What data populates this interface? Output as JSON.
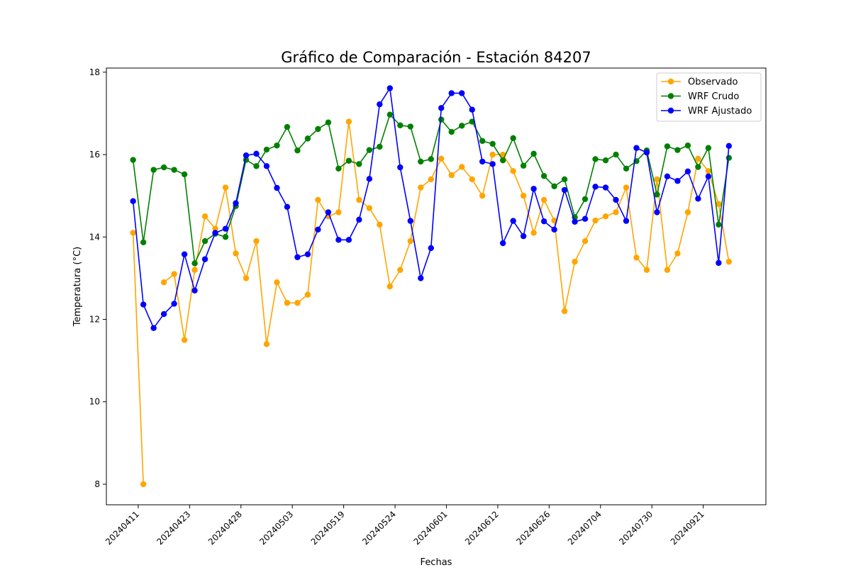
{
  "chart_data": {
    "type": "line",
    "title": "Gráfico de Comparación - Estación 84207",
    "xlabel": "Fechas",
    "ylabel": "Temperatura (°C)",
    "x_tick_labels": [
      "20240411",
      "20240423",
      "20240428",
      "20240503",
      "20240519",
      "20240524",
      "20240601",
      "20240612",
      "20240626",
      "20240704",
      "20240730",
      "20240921"
    ],
    "x_tick_positions": [
      0.5,
      5.5,
      10.5,
      15.5,
      20.5,
      25.5,
      30.5,
      35.5,
      40.5,
      45.5,
      50.5,
      55.5
    ],
    "y_ticks": [
      8,
      10,
      12,
      14,
      16,
      18
    ],
    "ylim": [
      7.5,
      18.1
    ],
    "xlim": [
      -2.6,
      61.6
    ],
    "legend_position": "upper right",
    "grid": false,
    "series": [
      {
        "name": "Observado",
        "color": "#FFA500",
        "values": [
          14.1,
          8.0,
          null,
          12.9,
          13.1,
          11.5,
          13.2,
          14.5,
          14.2,
          15.2,
          13.6,
          13.0,
          13.9,
          11.4,
          12.9,
          12.4,
          12.4,
          12.6,
          14.9,
          14.5,
          14.6,
          16.8,
          14.9,
          14.7,
          14.3,
          12.8,
          13.2,
          13.9,
          15.2,
          15.4,
          15.9,
          15.5,
          15.7,
          15.4,
          15.0,
          16.0,
          16.0,
          15.6,
          15.0,
          14.1,
          14.9,
          14.4,
          12.2,
          13.4,
          13.9,
          14.4,
          14.5,
          14.6,
          15.2,
          13.5,
          13.2,
          15.4,
          13.2,
          13.6,
          14.6,
          15.9,
          15.6,
          14.8,
          13.4
        ]
      },
      {
        "name": "WRF Crudo",
        "color": "#008000",
        "values": [
          15.87,
          13.87,
          15.63,
          15.69,
          15.63,
          15.52,
          13.36,
          13.9,
          14.08,
          14.0,
          14.75,
          15.87,
          15.72,
          16.12,
          16.22,
          16.67,
          16.1,
          16.39,
          16.62,
          16.78,
          15.66,
          15.85,
          15.77,
          16.11,
          16.19,
          16.97,
          16.71,
          16.68,
          15.83,
          15.89,
          16.85,
          16.55,
          16.7,
          16.8,
          16.33,
          16.26,
          15.86,
          16.4,
          15.73,
          16.02,
          15.48,
          15.23,
          15.4,
          14.48,
          14.92,
          15.89,
          15.86,
          16.0,
          15.66,
          15.84,
          16.1,
          15.03,
          16.2,
          16.11,
          16.22,
          15.7,
          16.16,
          14.3,
          15.92
        ]
      },
      {
        "name": "WRF Ajustado",
        "color": "#0000FF",
        "values": [
          14.87,
          12.36,
          11.79,
          12.13,
          12.38,
          13.58,
          12.7,
          13.46,
          14.1,
          14.2,
          14.82,
          15.98,
          16.02,
          15.72,
          15.19,
          14.73,
          13.51,
          13.58,
          14.18,
          14.6,
          13.93,
          13.93,
          14.42,
          15.41,
          17.22,
          17.61,
          15.69,
          14.39,
          13.0,
          13.73,
          17.13,
          17.49,
          17.49,
          17.09,
          15.83,
          15.77,
          13.85,
          14.39,
          14.02,
          15.17,
          14.38,
          14.18,
          15.14,
          14.37,
          14.44,
          15.22,
          15.2,
          14.9,
          14.39,
          16.16,
          16.05,
          14.6,
          15.47,
          15.36,
          15.59,
          14.93,
          15.47,
          13.37,
          16.21
        ]
      }
    ]
  }
}
